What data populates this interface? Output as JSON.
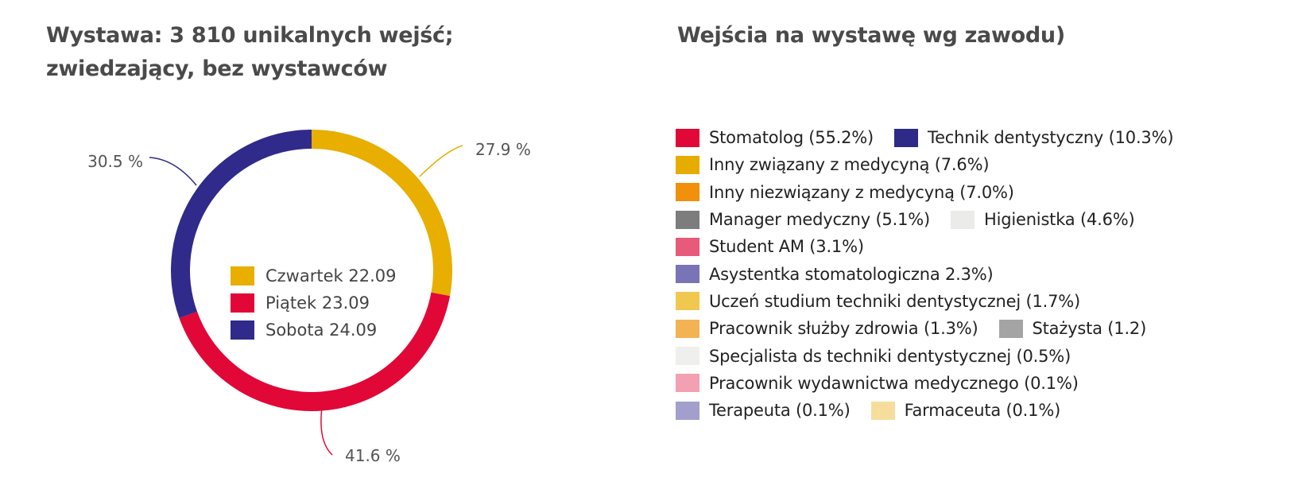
{
  "left": {
    "title_line1": "Wystawa: 3 810 unikalnych wejść;",
    "title_line2": "zwiedzający, bez wystawców"
  },
  "right": {
    "title": "Wejścia na wystawę wg zawodu)"
  },
  "chart_data": [
    {
      "type": "pie",
      "title": "Wystawa: 3 810 unikalnych wejść; zwiedzający, bez wystawców",
      "donut": true,
      "categories": [
        "Czwartek 22.09",
        "Piątek 23.09",
        "Sobota 24.09"
      ],
      "values": [
        27.9,
        41.6,
        30.5
      ],
      "value_labels": [
        "27.9 %",
        "41.6 %",
        "30.5 %"
      ],
      "colors": [
        "#e8ae00",
        "#e10737",
        "#302a8b"
      ],
      "legend_position": "center"
    },
    {
      "type": "legend",
      "title": "Wejścia na wystawę wg zawodu)",
      "rows": [
        [
          {
            "label": "Stomatolog (55.2%)",
            "color": "#e10737"
          },
          {
            "label": "Technik dentystyczny (10.3%)",
            "color": "#2e2a88"
          }
        ],
        [
          {
            "label": "Inny związany z medycyną (7.6%)",
            "color": "#e7ac00"
          }
        ],
        [
          {
            "label": "Inny niezwiązany z medycyną (7.0%)",
            "color": "#f0900b"
          }
        ],
        [
          {
            "label": "Manager medyczny (5.1%)",
            "color": "#7d7d7d"
          },
          {
            "label": "Higienistka (4.6%)",
            "color": "#ebebea"
          }
        ],
        [
          {
            "label": "Student AM (3.1%)",
            "color": "#e85a79"
          }
        ],
        [
          {
            "label": "Asystentka stomatologiczna 2.3%)",
            "color": "#7a73b5"
          }
        ],
        [
          {
            "label": "Uczeń studium techniki dentystycznej (1.7%)",
            "color": "#f0c850"
          }
        ],
        [
          {
            "label": "Pracownik służby zdrowia (1.3%)",
            "color": "#f3b253"
          },
          {
            "label": "Stażysta (1.2)",
            "color": "#a4a4a4"
          }
        ],
        [
          {
            "label": "Specjalista ds techniki dentystycznej (0.5%)",
            "color": "#efefed"
          }
        ],
        [
          {
            "label": "Pracownik wydawnictwa medycznego (0.1%)",
            "color": "#f3a0b3"
          }
        ],
        [
          {
            "label": "Terapeuta (0.1%)",
            "color": "#a29fcc"
          },
          {
            "label": "Farmaceuta (0.1%)",
            "color": "#f6dd9b"
          }
        ]
      ]
    }
  ]
}
